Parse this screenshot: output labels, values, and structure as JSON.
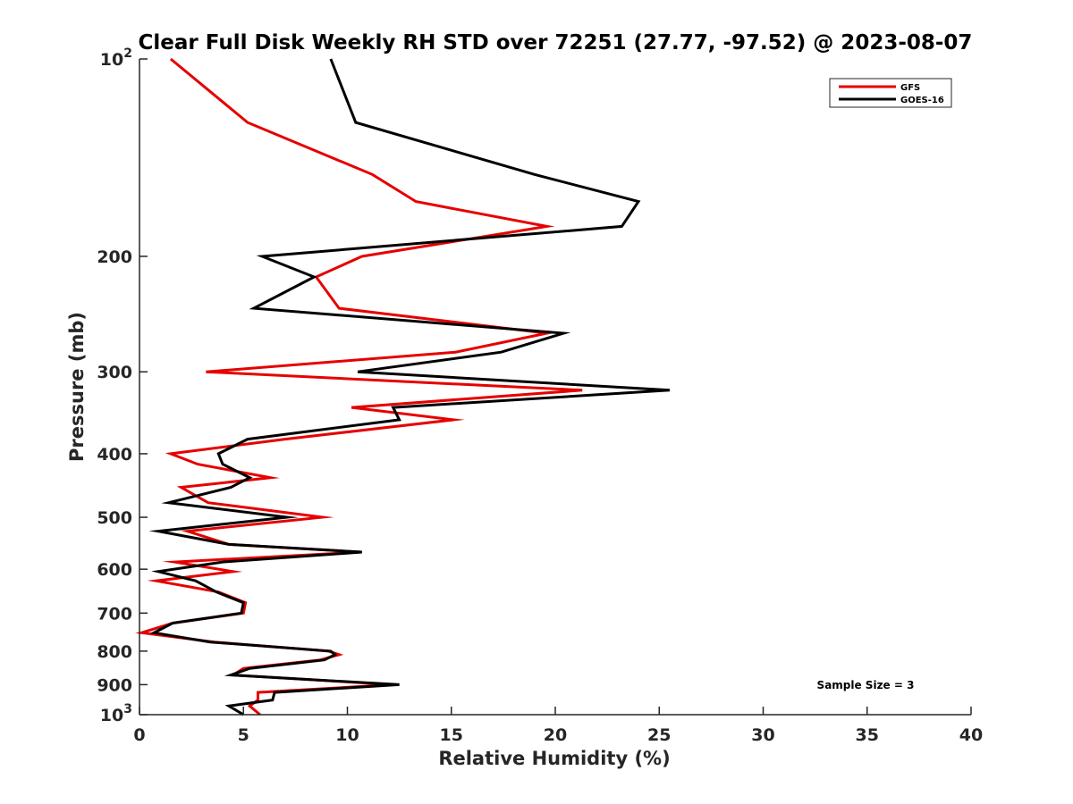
{
  "chart_data": {
    "type": "line",
    "title": "Clear Full Disk Weekly RH STD over 72251 (27.77, -97.52) @ 2023-08-07",
    "xlabel": "Relative Humidity (%)",
    "ylabel": "Pressure (mb)",
    "xlim": [
      0,
      40
    ],
    "ylim": [
      100,
      1000
    ],
    "y_scale": "log",
    "y_reversed": true,
    "grid": false,
    "legend_position": "top-right",
    "x_ticks": [
      0,
      5,
      10,
      15,
      20,
      25,
      30,
      35,
      40
    ],
    "x_tick_labels": [
      "0",
      "5",
      "10",
      "15",
      "20",
      "25",
      "30",
      "35",
      "40"
    ],
    "y_ticks": [
      100,
      200,
      300,
      400,
      500,
      600,
      700,
      800,
      900,
      1000
    ],
    "y_tick_labels": [
      {
        "base": "10",
        "exp": "2"
      },
      {
        "base": "200",
        "exp": ""
      },
      {
        "base": "300",
        "exp": ""
      },
      {
        "base": "400",
        "exp": ""
      },
      {
        "base": "500",
        "exp": ""
      },
      {
        "base": "600",
        "exp": ""
      },
      {
        "base": "700",
        "exp": ""
      },
      {
        "base": "800",
        "exp": ""
      },
      {
        "base": "900",
        "exp": ""
      },
      {
        "base": "10",
        "exp": "3"
      }
    ],
    "series": [
      {
        "name": "GFS",
        "color": "#e60000",
        "x": [
          1.5,
          5.2,
          11.2,
          13.3,
          19.6,
          10.7,
          8.5,
          9.6,
          19.6,
          15.2,
          3.2,
          21.3,
          10.2,
          15.1,
          7.0,
          1.5,
          2.8,
          6.3,
          2.0,
          3.3,
          8.8,
          2.3,
          4.3,
          10.6,
          1.7,
          4.5,
          0.8,
          3.8,
          5.1,
          5.0,
          1.6,
          0.1,
          3.6,
          9.1,
          9.6,
          8.7,
          5.0,
          4.5,
          12.2,
          5.7,
          5.7,
          5.3,
          5.8
        ],
        "y": [
          100,
          125,
          150,
          165,
          180,
          200,
          215,
          240,
          262,
          280,
          300,
          320,
          340,
          355,
          380,
          400,
          415,
          435,
          450,
          475,
          500,
          525,
          550,
          565,
          585,
          605,
          625,
          650,
          675,
          700,
          725,
          750,
          775,
          800,
          810,
          825,
          850,
          870,
          900,
          925,
          950,
          970,
          1000
        ]
      },
      {
        "name": "GOES-16",
        "color": "#000000",
        "x": [
          9.2,
          10.4,
          19.0,
          24.0,
          23.2,
          5.9,
          8.4,
          5.5,
          20.4,
          17.4,
          10.5,
          25.5,
          12.2,
          12.5,
          5.2,
          3.8,
          4.0,
          5.3,
          4.4,
          1.4,
          7.1,
          0.9,
          4.3,
          10.7,
          4.0,
          0.9,
          2.7,
          3.7,
          5.0,
          4.9,
          1.6,
          0.7,
          3.4,
          9.2,
          9.4,
          8.9,
          5.3,
          4.4,
          12.5,
          6.5,
          6.4,
          4.3,
          5.0
        ],
        "y": [
          100,
          125,
          150,
          165,
          180,
          200,
          215,
          240,
          262,
          280,
          300,
          320,
          340,
          355,
          380,
          400,
          415,
          435,
          450,
          475,
          500,
          525,
          550,
          565,
          585,
          605,
          625,
          650,
          675,
          700,
          725,
          750,
          775,
          800,
          810,
          825,
          850,
          870,
          900,
          925,
          950,
          970,
          1000
        ]
      }
    ],
    "annotations": [
      {
        "text": "Sample Size = 3"
      }
    ]
  }
}
